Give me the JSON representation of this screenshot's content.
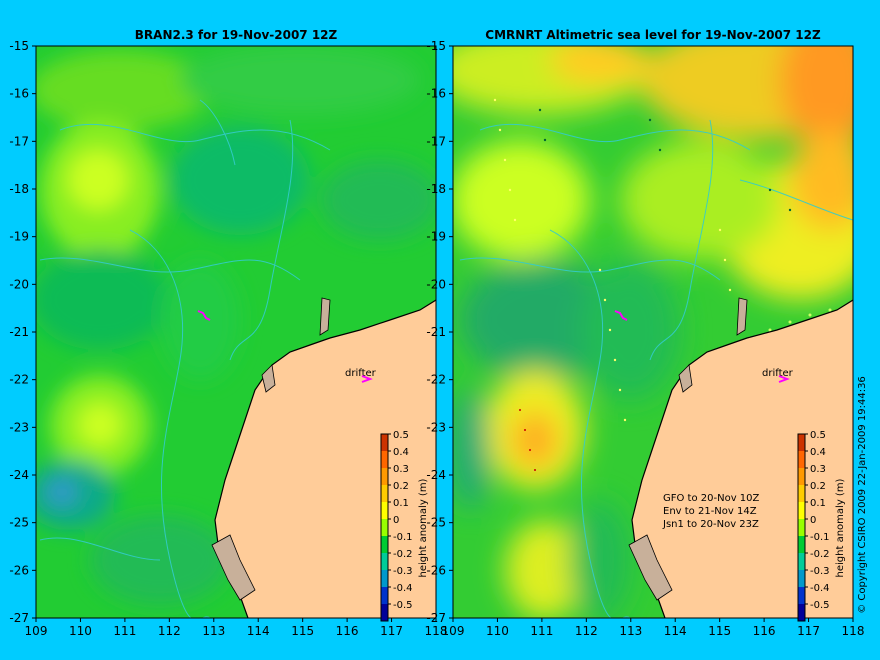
{
  "colors": {
    "background": "#00ccff",
    "land": "#ffcc99",
    "shore": "#c8b09a",
    "contour": "#33cccc",
    "drifter": "#ff00ff"
  },
  "icons": [
    "drifter-arrow-icon"
  ],
  "panels": [
    {
      "title": "BRAN2.3 for 19-Nov-2007 12Z",
      "drifter_label": "drifter",
      "colorbar_label": "height anomaly (m)",
      "notes": []
    },
    {
      "title": "CMRNRT Altimetric sea level  for 19-Nov-2007 12Z",
      "drifter_label": "drifter",
      "colorbar_label": "height anomaly (m)",
      "notes": [
        "GFO to 20-Nov 10Z",
        "Env to 21-Nov 14Z",
        "Jsn1 to 20-Nov 23Z"
      ]
    }
  ],
  "axes": {
    "lat_ticks": [
      "-15",
      "-16",
      "-17",
      "-18",
      "-19",
      "-20",
      "-21",
      "-22",
      "-23",
      "-24",
      "-25",
      "-26",
      "-27"
    ],
    "lon_ticks": [
      "109",
      "110",
      "111",
      "112",
      "113",
      "114",
      "115",
      "116",
      "117",
      "118"
    ]
  },
  "colorbar_ticks": [
    "0.5",
    "0.4",
    "0.3",
    "0.2",
    "0.1",
    "0",
    "-0.1",
    "-0.2",
    "-0.3",
    "-0.4",
    "-0.5"
  ],
  "colorbar_colors": [
    "#cc3300",
    "#ff6600",
    "#ff9900",
    "#ffcc00",
    "#ffff00",
    "#99ff00",
    "#00cc33",
    "#00cc99",
    "#0099cc",
    "#0033cc",
    "#000099"
  ],
  "copyright": "© Copyright CSIRO 2009   22-Jan-2009 19:44:36"
}
